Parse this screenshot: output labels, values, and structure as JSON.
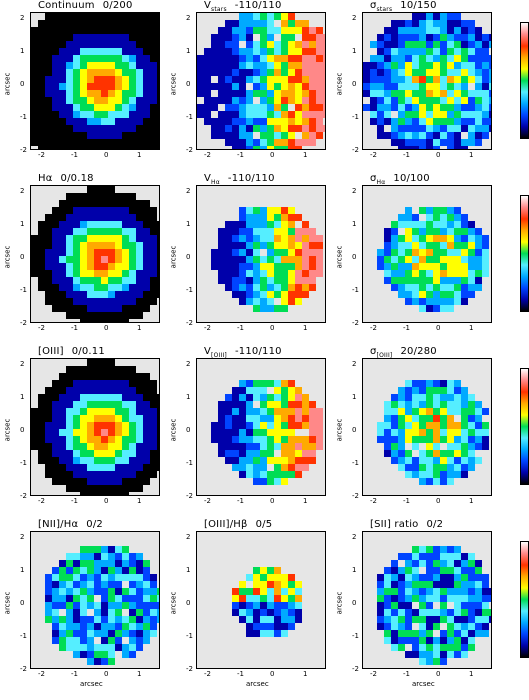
{
  "rows": [
    {
      "panels": [
        {
          "title_main": "Continuum",
          "title_sub": "",
          "title_range": "0/200",
          "kind": "flux"
        },
        {
          "title_main": "V",
          "title_sub": "stars",
          "title_range": "-110/110",
          "kind": "vel"
        },
        {
          "title_main": "σ",
          "title_sub": "stars",
          "title_range": "10/150",
          "kind": "vel"
        }
      ]
    },
    {
      "panels": [
        {
          "title_main": "Hα",
          "title_sub": "",
          "title_range": "0/0.18",
          "kind": "flux"
        },
        {
          "title_main": "V",
          "title_sub": "Hα",
          "title_range": "-110/110",
          "kind": "vel"
        },
        {
          "title_main": "σ",
          "title_sub": "Hα",
          "title_range": "10/100",
          "kind": "vel"
        }
      ]
    },
    {
      "panels": [
        {
          "title_main": "[OIII]",
          "title_sub": "",
          "title_range": "0/0.11",
          "kind": "flux"
        },
        {
          "title_main": "V",
          "title_sub": "[OIII]",
          "title_range": "-110/110",
          "kind": "vel"
        },
        {
          "title_main": "σ",
          "title_sub": "[OIII]",
          "title_range": "20/280",
          "kind": "vel"
        }
      ]
    },
    {
      "panels": [
        {
          "title_main": "[NII]/Hα",
          "title_sub": "",
          "title_range": "0/2",
          "kind": "ratio"
        },
        {
          "title_main": "[OIII]/Hβ",
          "title_sub": "",
          "title_range": "0/5",
          "kind": "ratio"
        },
        {
          "title_main": "[SII] ratio",
          "title_sub": "",
          "title_range": "0/2",
          "kind": "ratio"
        }
      ]
    }
  ],
  "axes": {
    "x_ticks": [
      "-2",
      "-1",
      "0",
      "1"
    ],
    "y_ticks": [
      "2",
      "1",
      "0",
      "-1",
      "-2"
    ],
    "x_label": "arcsec",
    "y_label": "arcsec"
  },
  "colors": {
    "background": "#e6e6e6",
    "colormap": [
      "#000000",
      "#0000aa",
      "#0044ff",
      "#00aaff",
      "#55eeff",
      "#00dd55",
      "#ffff00",
      "#ffaa00",
      "#ff3300",
      "#ff8888",
      "#ffffff"
    ]
  }
}
